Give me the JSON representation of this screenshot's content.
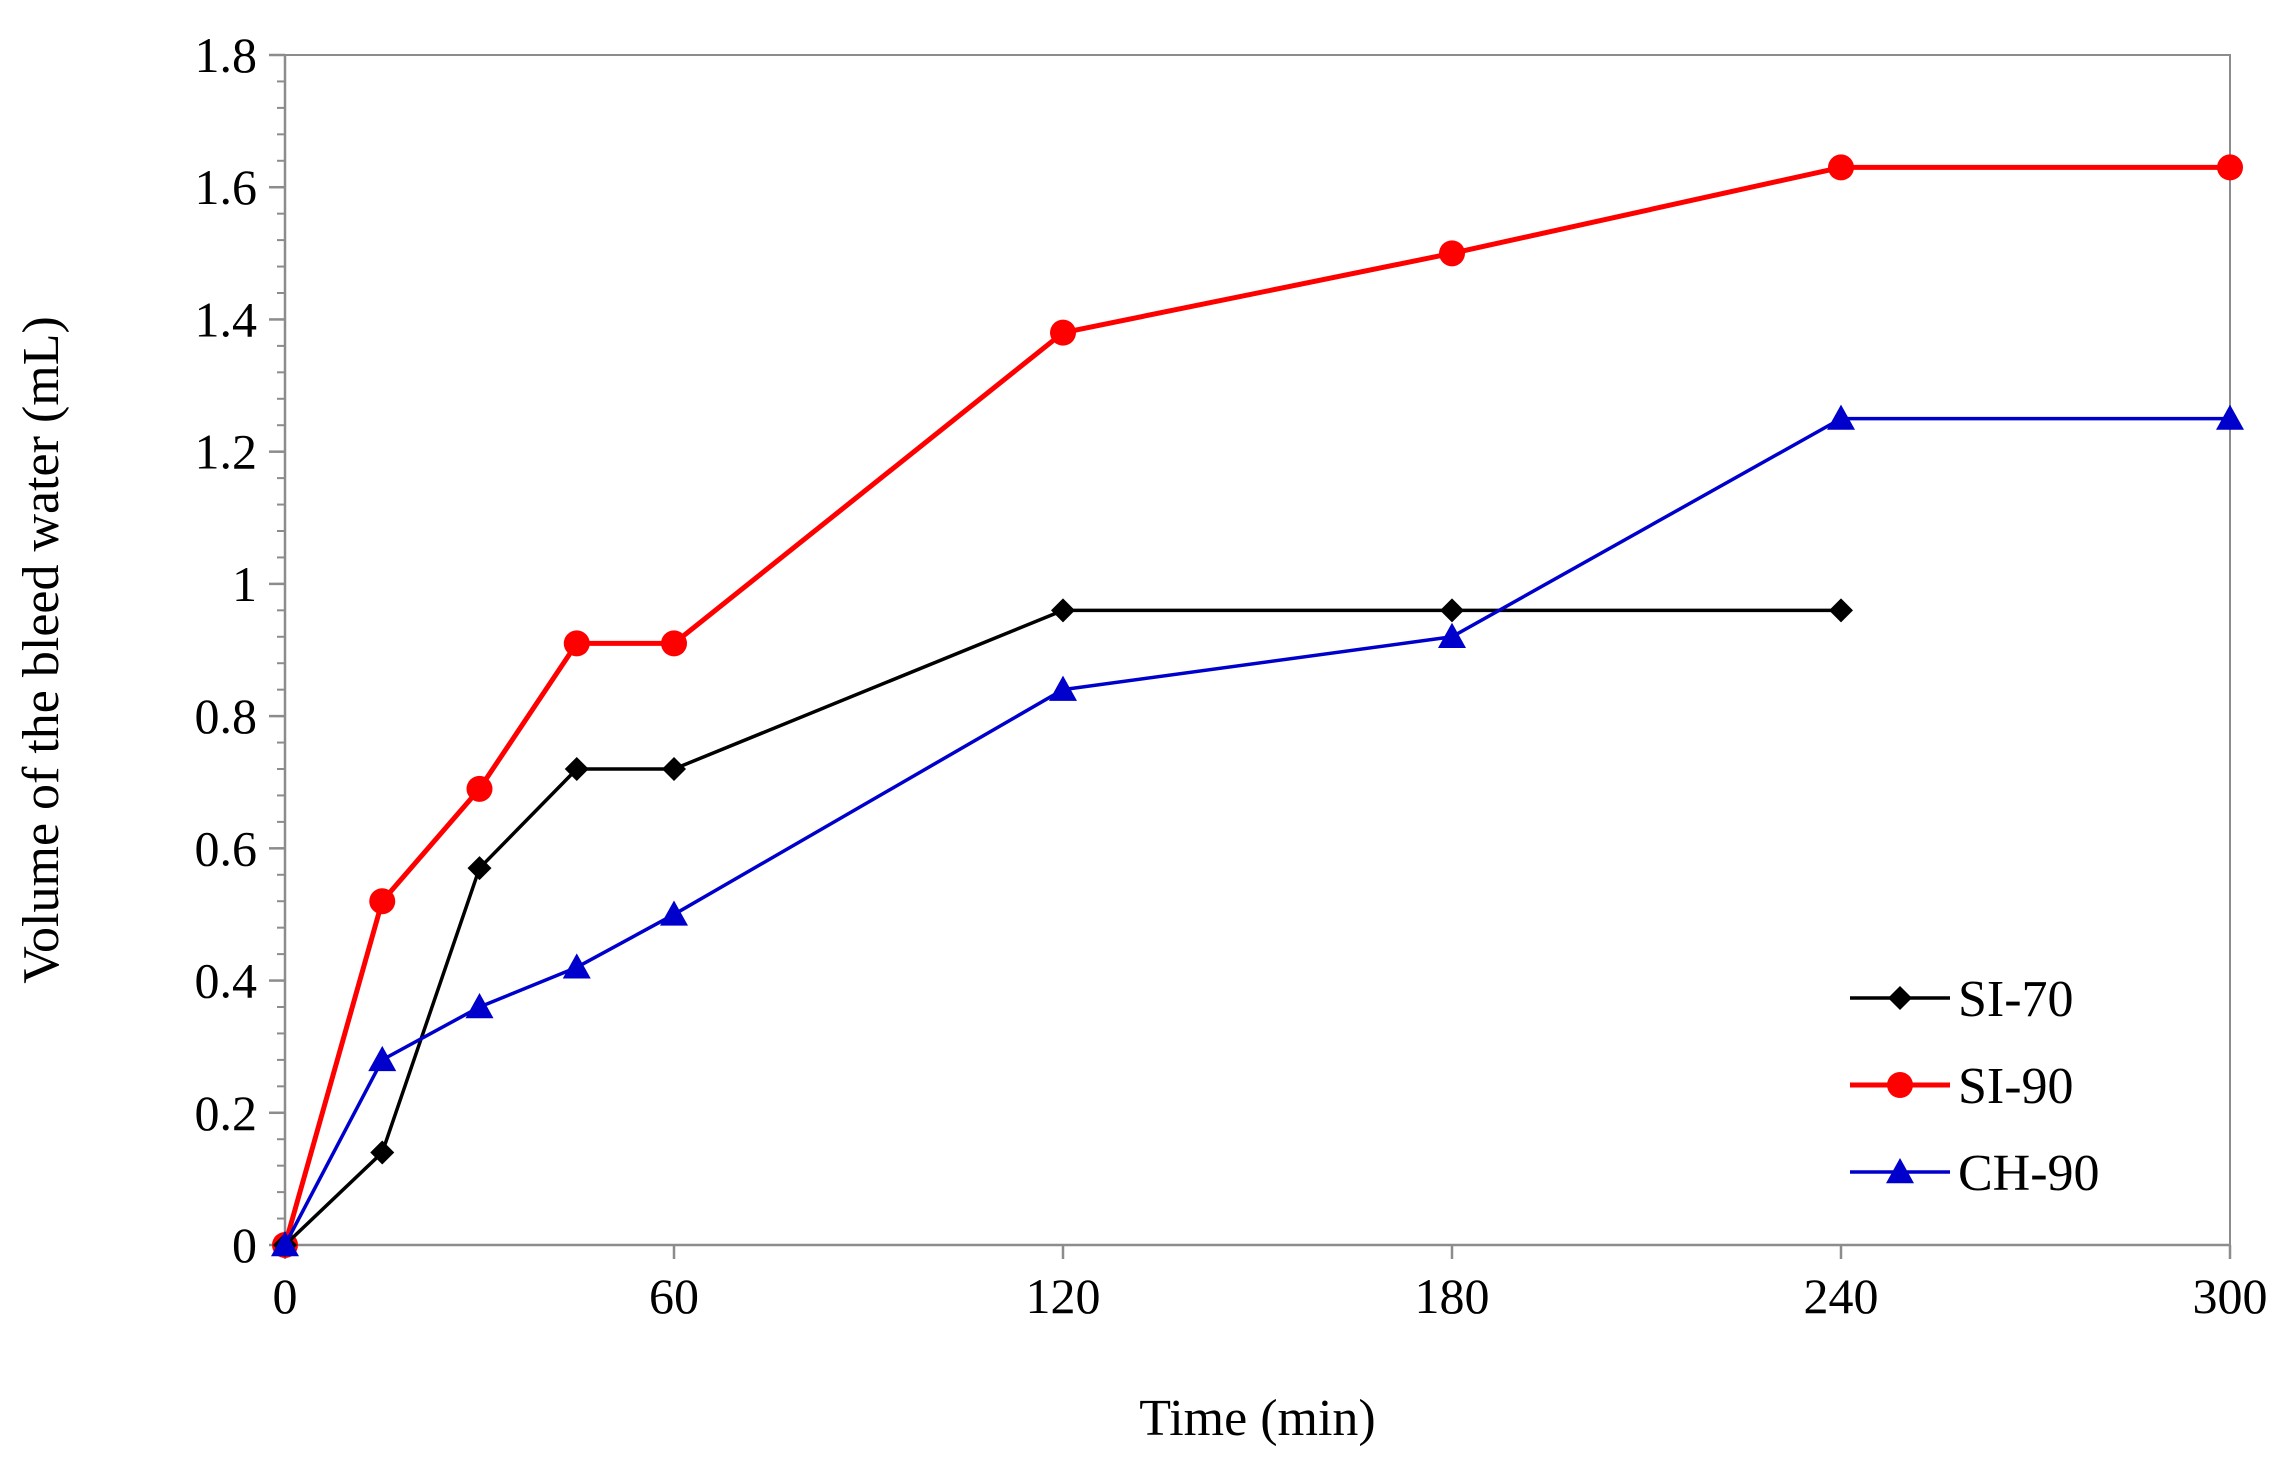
{
  "chart_data": {
    "type": "line",
    "title": "",
    "xlabel": "Time (min)",
    "ylabel": "Volume of the bleed water (mL)",
    "xlim": [
      0,
      300
    ],
    "ylim": [
      0,
      1.8
    ],
    "xticks": [
      0,
      60,
      120,
      180,
      240,
      300
    ],
    "xtick_labels": [
      "0",
      "60",
      "120",
      "180",
      "240",
      "300"
    ],
    "yticks": [
      0,
      0.2,
      0.4,
      0.6,
      0.8,
      1.0,
      1.2,
      1.4,
      1.6,
      1.8
    ],
    "ytick_labels": [
      "0",
      "0.2",
      "0.4",
      "0.6",
      "0.8",
      "1",
      "1.2",
      "1.4",
      "1.6",
      "1.8"
    ],
    "y_minor_step": 0.04,
    "grid": false,
    "legend_position": "bottom-right",
    "series": [
      {
        "name": "SI-70",
        "color": "#000000",
        "marker": "diamond",
        "x": [
          0,
          15,
          30,
          45,
          60,
          120,
          180,
          240
        ],
        "y": [
          0,
          0.14,
          0.57,
          0.72,
          0.72,
          0.96,
          0.96,
          0.96
        ]
      },
      {
        "name": "SI-90",
        "color": "#ff0000",
        "marker": "circle",
        "x": [
          0,
          15,
          30,
          45,
          60,
          120,
          180,
          240,
          300
        ],
        "y": [
          0,
          0.52,
          0.69,
          0.91,
          0.91,
          1.38,
          1.5,
          1.63,
          1.63
        ]
      },
      {
        "name": "CH-90",
        "color": "#0000cc",
        "marker": "triangle",
        "x": [
          0,
          15,
          30,
          45,
          60,
          120,
          180,
          240,
          300
        ],
        "y": [
          0,
          0.28,
          0.36,
          0.42,
          0.5,
          0.84,
          0.92,
          1.25,
          1.25
        ]
      }
    ]
  }
}
